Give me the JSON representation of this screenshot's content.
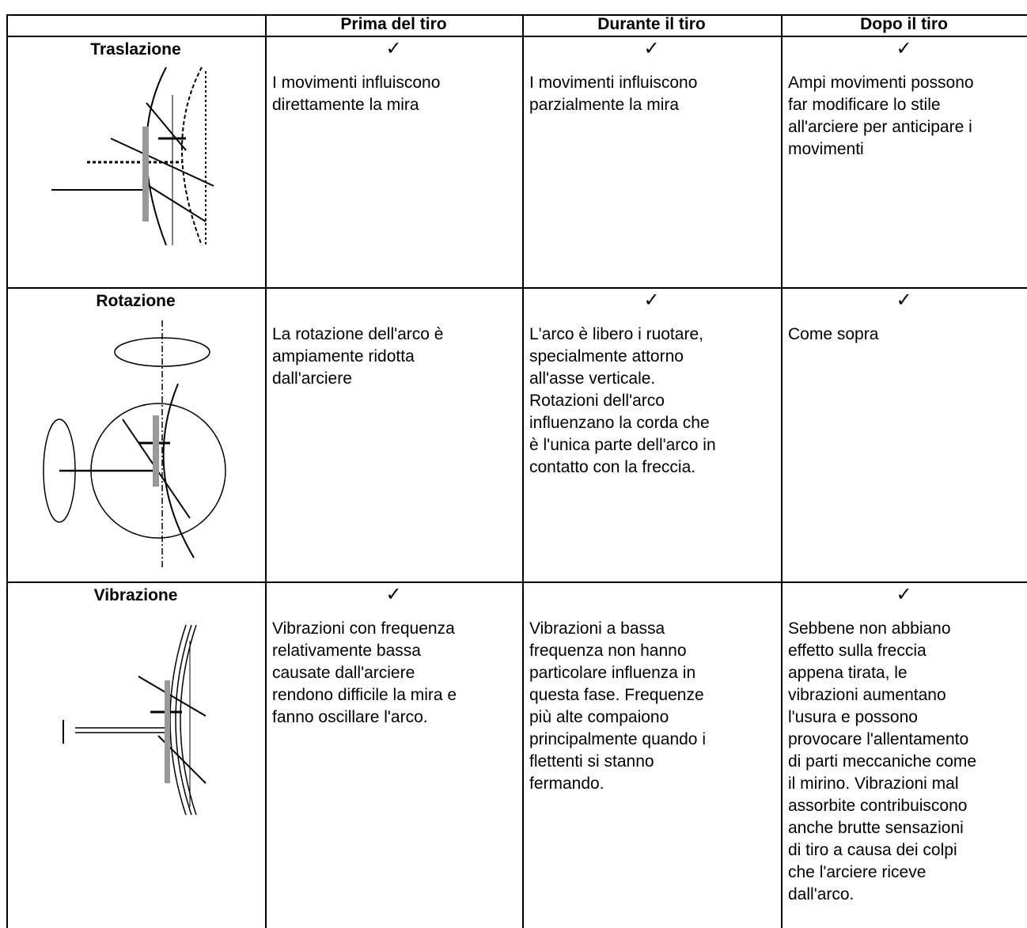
{
  "table": {
    "header": [
      "Prima del tiro",
      "Durante il tiro",
      "Dopo il tiro"
    ],
    "rows": [
      {
        "label": "Traslazione",
        "cells": [
          {
            "check": "✓",
            "lines": [
              "I movimenti influiscono",
              "direttamente la mira"
            ]
          },
          {
            "check": "✓",
            "lines": [
              "I movimenti influiscono",
              "parzialmente la mira"
            ]
          },
          {
            "check": "✓",
            "lines": [
              "Ampi movimenti possono",
              "far modificare lo stile",
              "all'arciere per anticipare i",
              "movimenti"
            ]
          }
        ]
      },
      {
        "label": "Rotazione",
        "cells": [
          {
            "lines": [
              "La rotazione dell'arco è",
              "ampiamente ridotta",
              "dall'arciere"
            ]
          },
          {
            "check": "✓",
            "lines": [
              "L'arco è libero i ruotare,",
              "specialmente attorno",
              "all'asse verticale.",
              "Rotazioni dell'arco",
              "influenzano la corda che",
              "è l'unica parte dell'arco in",
              "contatto con la freccia."
            ]
          },
          {
            "check": "✓",
            "lines": [
              "Come sopra"
            ]
          }
        ]
      },
      {
        "label": "Vibrazione",
        "cells": [
          {
            "check": "✓",
            "lines": [
              "Vibrazioni con frequenza",
              "relativamente bassa",
              "causate dall'arciere",
              "rendono difficile la mira e",
              "fanno oscillare l'arco."
            ]
          },
          {
            "lines": [
              "Vibrazioni a bassa",
              "frequenza non hanno",
              "particolare influenza in",
              "questa fase. Frequenze",
              "più alte compaiono",
              "principalmente quando i",
              "flettenti si stanno",
              "fermando."
            ]
          },
          {
            "check": "✓",
            "lines": [
              "Sebbene non abbiano",
              "effetto sulla freccia",
              "appena tirata, le",
              "vibrazioni aumentano",
              "l'usura e possono",
              "provocare l'allentamento",
              "di parti meccaniche come",
              "il mirino. Vibrazioni mal",
              "assorbite contribuiscono",
              "anche brutte sensazioni",
              "di tiro a causa dei colpi",
              "che l'arciere riceve",
              "dall'arco."
            ]
          }
        ]
      }
    ]
  }
}
